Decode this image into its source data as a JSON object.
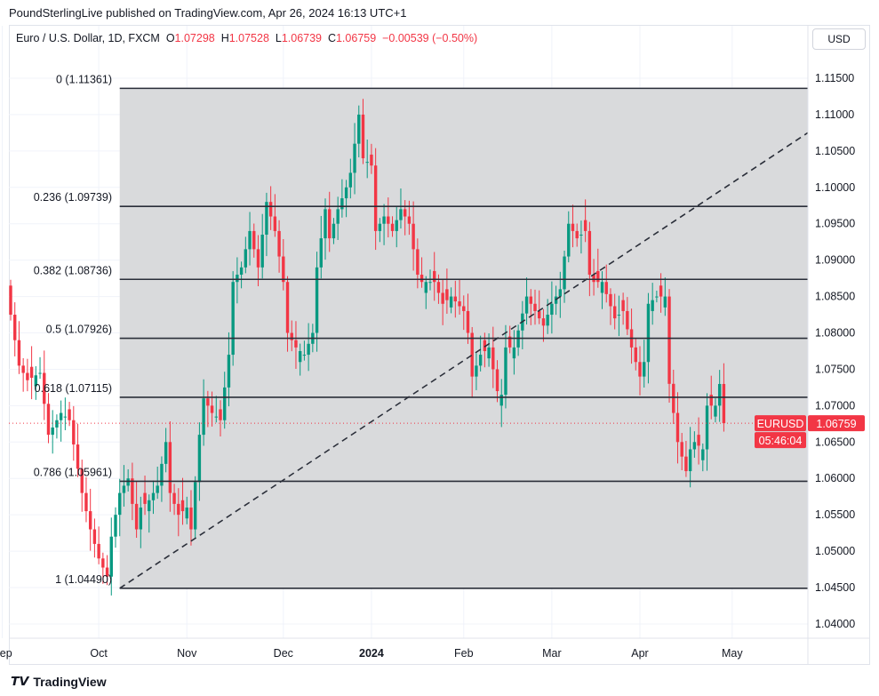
{
  "header": {
    "published": "PoundSterlingLive published on TradingView.com, Apr 26, 2024 16:13 UTC+1"
  },
  "legend": {
    "symbol": "Euro / U.S. Dollar, 1D, FXCM",
    "o_label": "O",
    "o": "1.07298",
    "h_label": "H",
    "h": "1.07528",
    "l_label": "L",
    "l": "1.06739",
    "c_label": "C",
    "c": "1.06759",
    "change": "−0.00539 (−0.50%)"
  },
  "currency_button": "USD",
  "price_tag": {
    "symbol": "EURUSD",
    "price": "1.06759",
    "countdown": "05:46:04"
  },
  "brand": "TradingView",
  "colors": {
    "up": "#089981",
    "down": "#f23645",
    "fib_fill": "#d9dadc",
    "tag": "#f23645"
  },
  "chart_data": {
    "type": "candlestick",
    "title": "Euro / U.S. Dollar, 1D, FXCM",
    "ylim": [
      1.0375,
      1.1225
    ],
    "y_ticks": [
      "1.04000",
      "1.04500",
      "1.05000",
      "1.05500",
      "1.06000",
      "1.06500",
      "1.07000",
      "1.07500",
      "1.08000",
      "1.08500",
      "1.09000",
      "1.09500",
      "1.10000",
      "1.10500",
      "1.11000",
      "1.11500"
    ],
    "x_ticks": [
      {
        "label": "Sep",
        "i": -2
      },
      {
        "label": "Oct",
        "i": 21
      },
      {
        "label": "Nov",
        "i": 42
      },
      {
        "label": "Dec",
        "i": 65
      },
      {
        "label": "2024",
        "i": 86
      },
      {
        "label": "Feb",
        "i": 108
      },
      {
        "label": "Mar",
        "i": 129
      },
      {
        "label": "Apr",
        "i": 150
      },
      {
        "label": "May",
        "i": 172
      }
    ],
    "close_path": [
      [
        0,
        1.0825
      ],
      [
        2,
        1.0755
      ],
      [
        4,
        1.0735
      ],
      [
        7,
        1.0745
      ],
      [
        9,
        1.066
      ],
      [
        12,
        1.069
      ],
      [
        14,
        1.068
      ],
      [
        17,
        1.058
      ],
      [
        19,
        1.053
      ],
      [
        21,
        1.049
      ],
      [
        23,
        1.0465
      ],
      [
        24,
        1.052
      ],
      [
        26,
        1.058
      ],
      [
        28,
        1.06
      ],
      [
        30,
        1.053
      ],
      [
        31,
        1.056
      ],
      [
        33,
        1.057
      ],
      [
        35,
        1.059
      ],
      [
        37,
        1.065
      ],
      [
        38,
        1.058
      ],
      [
        40,
        1.055
      ],
      [
        42,
        1.056
      ],
      [
        43,
        1.053
      ],
      [
        45,
        1.066
      ],
      [
        46,
        1.071
      ],
      [
        48,
        1.069
      ],
      [
        50,
        1.068
      ],
      [
        52,
        1.077
      ],
      [
        53,
        1.087
      ],
      [
        55,
        1.089
      ],
      [
        57,
        1.094
      ],
      [
        59,
        1.089
      ],
      [
        61,
        1.098
      ],
      [
        63,
        1.094
      ],
      [
        65,
        1.087
      ],
      [
        66,
        1.08
      ],
      [
        68,
        1.078
      ],
      [
        70,
        1.077
      ],
      [
        72,
        1.08
      ],
      [
        73,
        1.089
      ],
      [
        75,
        1.097
      ],
      [
        76,
        1.093
      ],
      [
        78,
        1.097
      ],
      [
        80,
        1.1
      ],
      [
        81,
        1.102
      ],
      [
        83,
        1.11
      ],
      [
        84,
        1.104
      ],
      [
        86,
        1.103
      ],
      [
        87,
        1.094
      ],
      [
        89,
        1.096
      ],
      [
        91,
        1.094
      ],
      [
        93,
        1.097
      ],
      [
        95,
        1.095
      ],
      [
        97,
        1.088
      ],
      [
        98,
        1.087
      ],
      [
        101,
        1.087
      ],
      [
        103,
        1.084
      ],
      [
        105,
        1.085
      ],
      [
        108,
        1.083
      ],
      [
        109,
        1.08
      ],
      [
        110,
        1.074
      ],
      [
        112,
        1.077
      ],
      [
        114,
        1.078
      ],
      [
        116,
        1.072
      ],
      [
        117,
        1.0715
      ],
      [
        118,
        1.078
      ],
      [
        120,
        1.078
      ],
      [
        123,
        1.085
      ],
      [
        125,
        1.083
      ],
      [
        127,
        1.081
      ],
      [
        129,
        1.084
      ],
      [
        131,
        1.086
      ],
      [
        133,
        1.095
      ],
      [
        135,
        1.093
      ],
      [
        137,
        1.094
      ],
      [
        138,
        1.088
      ],
      [
        139,
        1.087
      ],
      [
        141,
        1.087
      ],
      [
        144,
        1.082
      ],
      [
        146,
        1.083
      ],
      [
        148,
        1.078
      ],
      [
        150,
        1.074
      ],
      [
        151,
        1.076
      ],
      [
        152,
        1.084
      ],
      [
        154,
        1.085
      ],
      [
        156,
        1.085
      ],
      [
        157,
        1.073
      ],
      [
        159,
        1.065
      ],
      [
        160,
        1.063
      ],
      [
        161,
        1.061
      ],
      [
        162,
        1.064
      ],
      [
        163,
        1.065
      ],
      [
        165,
        1.064
      ],
      [
        166,
        1.07
      ],
      [
        168,
        1.07
      ],
      [
        169,
        1.07298
      ],
      [
        170,
        1.06759
      ]
    ],
    "fib": {
      "start_i": 26,
      "end_i": 190,
      "levels": [
        {
          "ratio": "0",
          "price": 1.11361,
          "label": "0 (1.11361)"
        },
        {
          "ratio": "0.236",
          "price": 1.09739,
          "label": "0.236 (1.09739)"
        },
        {
          "ratio": "0.382",
          "price": 1.08736,
          "label": "0.382 (1.08736)"
        },
        {
          "ratio": "0.5",
          "price": 1.07926,
          "label": "0.5 (1.07926)"
        },
        {
          "ratio": "0.618",
          "price": 1.07115,
          "label": "0.618 (1.07115)"
        },
        {
          "ratio": "0.786",
          "price": 1.05961,
          "label": "0.786 (1.05961)"
        },
        {
          "ratio": "1",
          "price": 1.0449,
          "label": "1 (1.04490)"
        }
      ]
    },
    "trendline": {
      "from": [
        26,
        1.0449
      ],
      "to": [
        190,
        1.1075
      ]
    },
    "last_price": 1.06759
  }
}
